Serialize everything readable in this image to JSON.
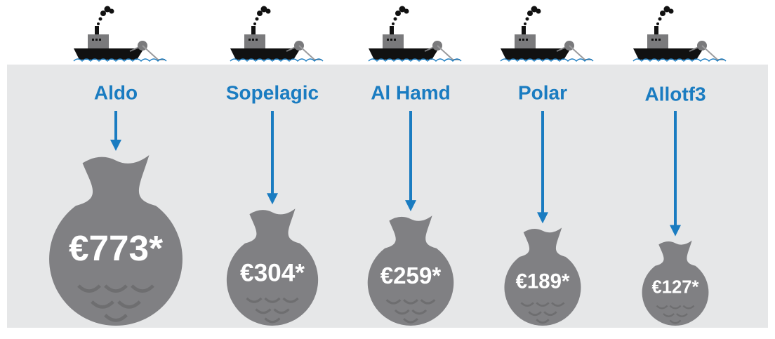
{
  "chart_data": {
    "type": "pictogram",
    "categories": [
      "Aldo",
      "Sopelagic",
      "Al Hamd",
      "Polar",
      "Allotf3"
    ],
    "values": [
      773,
      304,
      259,
      189,
      127
    ],
    "value_labels": [
      "€773*",
      "€304*",
      "€259*",
      "€189*",
      "€127*"
    ],
    "color": "#808083",
    "label_color": "#1a7cc1"
  }
}
